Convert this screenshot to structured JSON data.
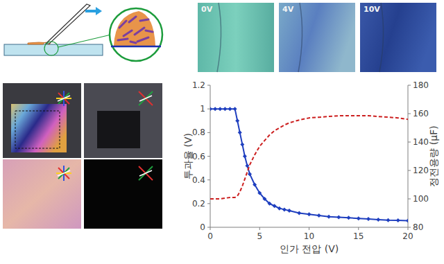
{
  "chart_data": {
    "type": "line",
    "x_label": "인가 전압 (V)",
    "y_label": "투과율 (V)",
    "y2_label": "정전용량 (μF)",
    "x": [
      0,
      0.5,
      1,
      1.5,
      2,
      2.5,
      2.75,
      3,
      3.25,
      3.5,
      3.75,
      4,
      4.5,
      5,
      5.5,
      6,
      6.5,
      7,
      7.5,
      8,
      9,
      10,
      11,
      12,
      13,
      14,
      15,
      16,
      17,
      18,
      19,
      20
    ],
    "xlim": [
      0,
      20
    ],
    "xticks": [
      0,
      5,
      10,
      15,
      20
    ],
    "ylim": [
      0,
      1.2
    ],
    "yticks": [
      0,
      0.2,
      0.4,
      0.6,
      0.8,
      1,
      1.2
    ],
    "y2lim": [
      80,
      180
    ],
    "y2ticks": [
      80,
      100,
      120,
      140,
      160,
      180
    ],
    "grid": false,
    "series": [
      {
        "color": "#1f3fbf",
        "marker": "diamond",
        "line_style": "solid",
        "values": [
          1,
          1,
          1,
          1,
          1,
          1,
          0.9,
          0.8,
          0.7,
          0.6,
          0.52,
          0.45,
          0.36,
          0.29,
          0.24,
          0.2,
          0.18,
          0.16,
          0.15,
          0.14,
          0.12,
          0.11,
          0.1,
          0.09,
          0.085,
          0.08,
          0.075,
          0.07,
          0.065,
          0.06,
          0.058,
          0.055
        ]
      },
      {
        "color": "#cc1f1f",
        "line_style": "dashed",
        "axis": "y2",
        "values": [
          100,
          100,
          100,
          100.5,
          101,
          101,
          102,
          105,
          109,
          114,
          119,
          124,
          131,
          137,
          141,
          145,
          148,
          150,
          152,
          153.5,
          155.5,
          157,
          157.5,
          158,
          158.5,
          158.5,
          158.5,
          158.5,
          158,
          157.5,
          157,
          156
        ]
      }
    ]
  },
  "photos": {
    "labels": [
      "0V",
      "4V",
      "10V"
    ]
  }
}
